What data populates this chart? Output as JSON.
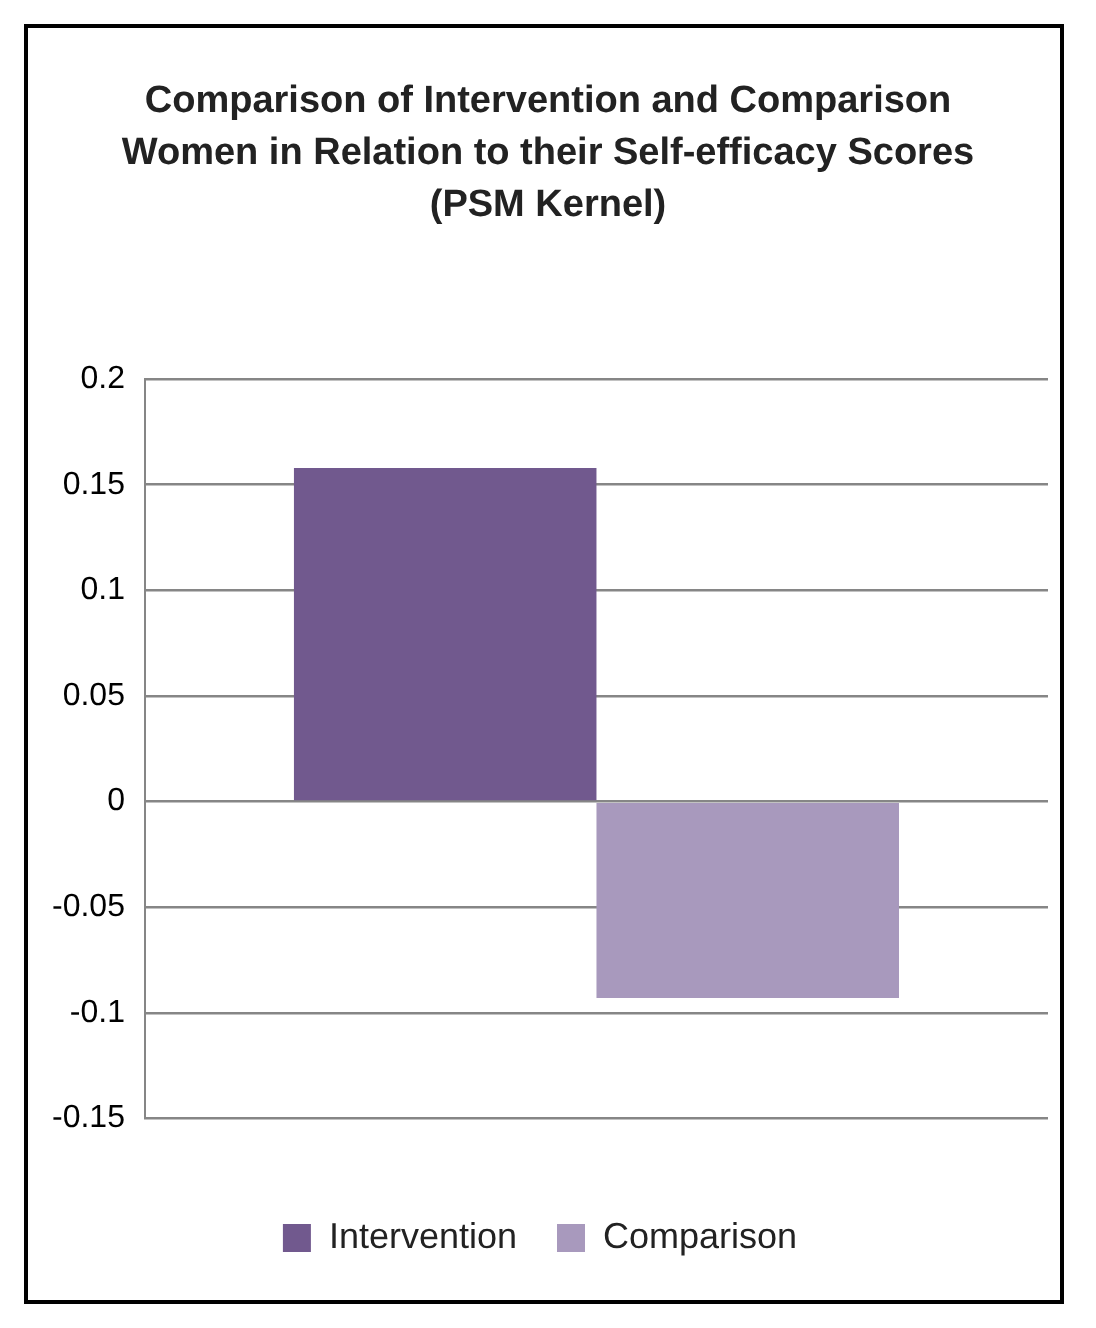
{
  "chart_data": {
    "type": "bar",
    "title": "Comparison of Intervention and Comparison Women in Relation to their Self-efficacy Scores (PSM Kernel)",
    "categories": [
      null
    ],
    "series": [
      {
        "name": "Intervention",
        "color": "#71598e",
        "values": [
          0.158
        ]
      },
      {
        "name": "Comparison",
        "color": "#a899bd",
        "values": [
          -0.093
        ]
      }
    ],
    "ylim": [
      -0.15,
      0.2
    ],
    "yticks": [
      -0.15,
      -0.1,
      -0.05,
      0,
      0.05,
      0.1,
      0.15,
      0.2
    ],
    "grid": "y",
    "legend": "bottom"
  }
}
